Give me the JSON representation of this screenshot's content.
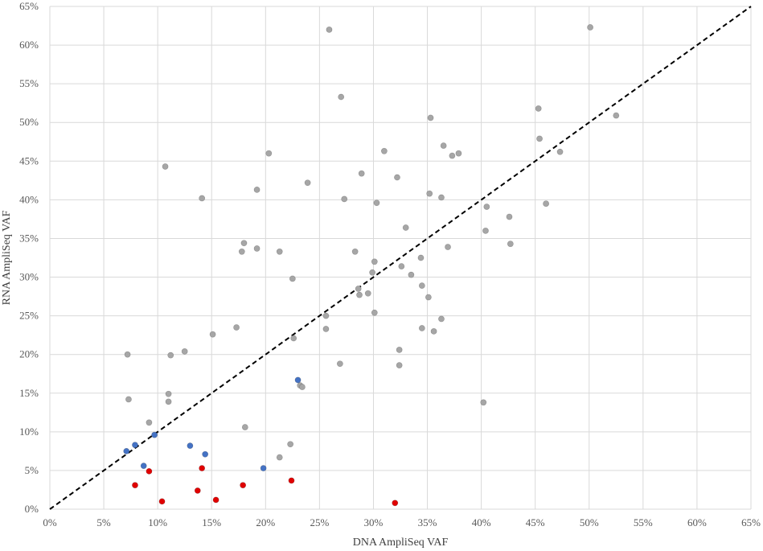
{
  "chart_data": {
    "type": "scatter",
    "title": "",
    "xlabel": "DNA AmpliSeq VAF",
    "ylabel": "RNA AmpliSeq VAF",
    "xlim": [
      0,
      65
    ],
    "ylim": [
      0,
      65
    ],
    "tick_step": 5,
    "tick_format": "percent",
    "grid": true,
    "reference_line": {
      "style": "dashed",
      "from": [
        0,
        0
      ],
      "to": [
        65,
        65
      ],
      "color": "#000000"
    },
    "series": [
      {
        "color": "#a6a6a6",
        "points": [
          [
            25.9,
            62.0
          ],
          [
            50.1,
            62.3
          ],
          [
            27.0,
            53.3
          ],
          [
            45.3,
            51.8
          ],
          [
            35.3,
            50.6
          ],
          [
            52.5,
            50.9
          ],
          [
            45.4,
            47.9
          ],
          [
            36.5,
            47.0
          ],
          [
            37.3,
            45.7
          ],
          [
            37.9,
            46.0
          ],
          [
            31.0,
            46.3
          ],
          [
            20.3,
            46.0
          ],
          [
            47.3,
            46.2
          ],
          [
            10.7,
            44.3
          ],
          [
            28.9,
            43.4
          ],
          [
            32.2,
            42.9
          ],
          [
            23.9,
            42.2
          ],
          [
            19.2,
            41.3
          ],
          [
            35.2,
            40.8
          ],
          [
            36.3,
            40.3
          ],
          [
            14.1,
            40.2
          ],
          [
            27.3,
            40.1
          ],
          [
            30.3,
            39.6
          ],
          [
            40.5,
            39.1
          ],
          [
            46.0,
            39.5
          ],
          [
            42.6,
            37.8
          ],
          [
            33.0,
            36.4
          ],
          [
            40.4,
            36.0
          ],
          [
            18.0,
            34.4
          ],
          [
            42.7,
            34.3
          ],
          [
            17.8,
            33.3
          ],
          [
            19.2,
            33.7
          ],
          [
            21.3,
            33.3
          ],
          [
            28.3,
            33.3
          ],
          [
            36.9,
            33.9
          ],
          [
            34.4,
            32.5
          ],
          [
            30.1,
            32.0
          ],
          [
            32.6,
            31.4
          ],
          [
            29.9,
            30.6
          ],
          [
            33.5,
            30.3
          ],
          [
            22.5,
            29.8
          ],
          [
            34.5,
            28.9
          ],
          [
            28.6,
            28.5
          ],
          [
            28.7,
            27.7
          ],
          [
            29.5,
            27.9
          ],
          [
            35.1,
            27.4
          ],
          [
            30.1,
            25.4
          ],
          [
            25.6,
            25.0
          ],
          [
            36.3,
            24.6
          ],
          [
            17.3,
            23.5
          ],
          [
            25.6,
            23.3
          ],
          [
            34.5,
            23.4
          ],
          [
            35.6,
            23.0
          ],
          [
            15.1,
            22.6
          ],
          [
            22.6,
            22.1
          ],
          [
            12.5,
            20.4
          ],
          [
            7.2,
            20.0
          ],
          [
            11.2,
            19.9
          ],
          [
            32.4,
            20.6
          ],
          [
            26.9,
            18.8
          ],
          [
            32.4,
            18.6
          ],
          [
            23.2,
            16.0
          ],
          [
            23.4,
            15.8
          ],
          [
            11.0,
            14.9
          ],
          [
            7.3,
            14.2
          ],
          [
            11.0,
            13.9
          ],
          [
            40.2,
            13.8
          ],
          [
            9.2,
            11.2
          ],
          [
            18.1,
            10.6
          ],
          [
            22.3,
            8.4
          ],
          [
            21.3,
            6.7
          ]
        ]
      },
      {
        "color": "#4472c4",
        "points": [
          [
            23.0,
            16.7
          ],
          [
            9.7,
            9.6
          ],
          [
            7.9,
            8.3
          ],
          [
            7.1,
            7.5
          ],
          [
            13.0,
            8.2
          ],
          [
            14.4,
            7.1
          ],
          [
            8.7,
            5.6
          ],
          [
            19.8,
            5.3
          ]
        ]
      },
      {
        "color": "#e00000",
        "points": [
          [
            9.2,
            4.9
          ],
          [
            14.1,
            5.3
          ],
          [
            7.9,
            3.1
          ],
          [
            13.7,
            2.4
          ],
          [
            17.9,
            3.1
          ],
          [
            22.4,
            3.7
          ],
          [
            10.4,
            1.0
          ],
          [
            15.4,
            1.2
          ],
          [
            32.0,
            0.8
          ]
        ]
      }
    ]
  }
}
